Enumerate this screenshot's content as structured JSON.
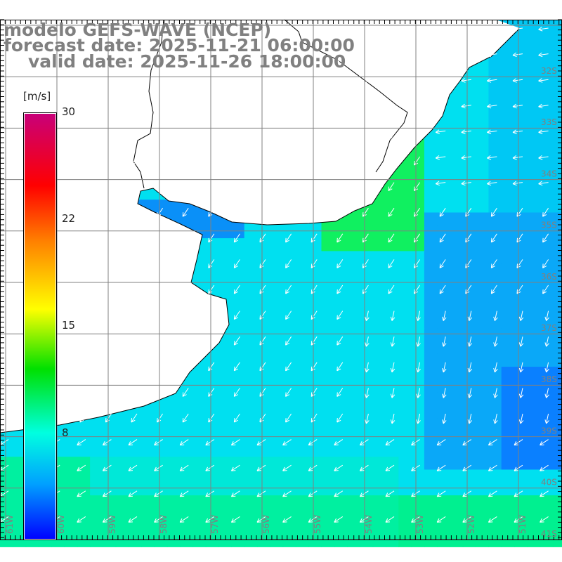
{
  "title": {
    "model": "modelo GEFS-WAVE (NCEP)",
    "forecast_date": "forecast date: 2025-11-21 06:00:00",
    "valid_date": "valid date: 2025-11-26 18:00:00"
  },
  "colorbar": {
    "unit": "[m/s]",
    "labels": [
      "30",
      "22",
      "15",
      "8"
    ],
    "min": 0,
    "max": 30
  },
  "axes": {
    "lon_labels": [
      "61W",
      "60W",
      "59W",
      "58W",
      "57W",
      "56W",
      "55W",
      "54W",
      "53W",
      "52W",
      "51W"
    ],
    "lat_labels": [
      "32S",
      "33S",
      "34S",
      "35S",
      "36S",
      "37S",
      "38S",
      "39S",
      "40S",
      "41S"
    ]
  },
  "colors": {
    "title": "#808080",
    "grid": "#808080",
    "land": "#ffffff",
    "coast": "#000000",
    "arrow": "#ffffff"
  }
}
